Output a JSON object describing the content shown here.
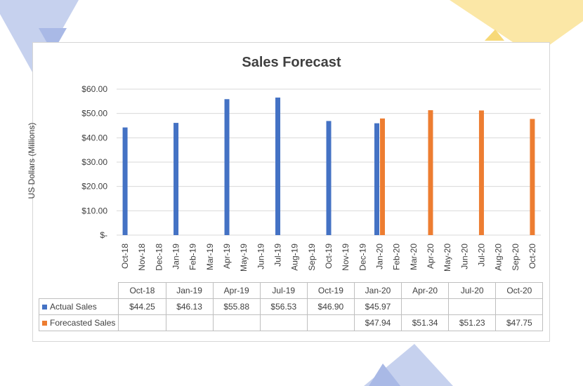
{
  "chart_data": {
    "type": "bar",
    "title": "Sales Forecast",
    "ylabel": "US Dollars (Millions)",
    "xlabel": "",
    "ylim": [
      0,
      60
    ],
    "yticks": [
      "$-",
      "$10.00",
      "$20.00",
      "$30.00",
      "$40.00",
      "$50.00",
      "$60.00"
    ],
    "grid": true,
    "categories": [
      "Oct-18",
      "Nov-18",
      "Dec-18",
      "Jan-19",
      "Feb-19",
      "Mar-19",
      "Apr-19",
      "May-19",
      "Jun-19",
      "Jul-19",
      "Aug-19",
      "Sep-19",
      "Oct-19",
      "Nov-19",
      "Dec-19",
      "Jan-20",
      "Feb-20",
      "Mar-20",
      "Apr-20",
      "May-20",
      "Jun-20",
      "Jul-20",
      "Aug-20",
      "Sep-20",
      "Oct-20"
    ],
    "series": [
      {
        "name": "Actual Sales",
        "color": "#4472c4",
        "values": [
          44.25,
          null,
          null,
          46.13,
          null,
          null,
          55.88,
          null,
          null,
          56.53,
          null,
          null,
          46.9,
          null,
          null,
          45.97,
          null,
          null,
          null,
          null,
          null,
          null,
          null,
          null,
          null
        ]
      },
      {
        "name": "Forecasted Sales",
        "color": "#ed7d31",
        "values": [
          null,
          null,
          null,
          null,
          null,
          null,
          null,
          null,
          null,
          null,
          null,
          null,
          null,
          null,
          null,
          47.94,
          null,
          null,
          51.34,
          null,
          null,
          51.23,
          null,
          null,
          47.75
        ]
      }
    ],
    "table": {
      "columns": [
        "Oct-18",
        "Jan-19",
        "Apr-19",
        "Jul-19",
        "Oct-19",
        "Jan-20",
        "Apr-20",
        "Jul-20",
        "Oct-20"
      ],
      "rows": [
        {
          "label": "Actual Sales",
          "cells": [
            "$44.25",
            "$46.13",
            "$55.88",
            "$56.53",
            "$46.90",
            "$45.97",
            "",
            "",
            ""
          ]
        },
        {
          "label": "Forecasted Sales",
          "cells": [
            "",
            "",
            "",
            "",
            "",
            "$47.94",
            "$51.34",
            "$51.23",
            "$47.75"
          ]
        }
      ]
    }
  },
  "decor_colors": {
    "blue": "#c6d1ee",
    "yellow": "#fbe7a6"
  }
}
